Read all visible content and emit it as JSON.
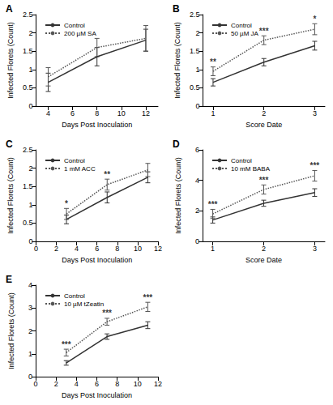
{
  "chart_data": [
    {
      "type": "line",
      "title": "A",
      "x_label": "Days Post Inoculation",
      "y_label": "Infected Florets (Count)",
      "x": [
        4,
        8,
        12
      ],
      "xlim": [
        3,
        13
      ],
      "xticks": [
        4,
        6,
        8,
        10,
        12
      ],
      "ylim": [
        0,
        2.5
      ],
      "yticks": [
        0,
        0.5,
        1,
        1.5,
        2,
        2.5
      ],
      "grid": false,
      "legend": "upper left",
      "series": [
        {
          "name": "Control",
          "color": "#333333",
          "line_style": "solid",
          "values": [
            0.65,
            1.35,
            1.8
          ],
          "errors": [
            0.25,
            0.25,
            0.3
          ]
        },
        {
          "name": "200 µM SA",
          "color": "#555555",
          "line_style": "dotted",
          "values": [
            0.8,
            1.6,
            1.85
          ],
          "errors": [
            0.25,
            0.25,
            0.35
          ]
        }
      ],
      "annotations": []
    },
    {
      "type": "line",
      "title": "B",
      "x_label": "Score Date",
      "y_label": "Infected Florets (Count)",
      "x": [
        1,
        2,
        3
      ],
      "xlim": [
        0.8,
        3.2
      ],
      "xticks": [
        1,
        2,
        3
      ],
      "ylim": [
        0,
        2.5
      ],
      "yticks": [
        0,
        0.5,
        1,
        1.5,
        2,
        2.5
      ],
      "grid": false,
      "legend": "upper left",
      "series": [
        {
          "name": "Control",
          "color": "#333333",
          "line_style": "solid",
          "values": [
            0.65,
            1.2,
            1.65
          ],
          "errors": [
            0.1,
            0.1,
            0.12
          ]
        },
        {
          "name": "50 µM JA",
          "color": "#555555",
          "line_style": "dotted",
          "values": [
            0.95,
            1.8,
            2.1
          ],
          "errors": [
            0.12,
            0.12,
            0.15
          ]
        }
      ],
      "annotations": [
        {
          "x": 1,
          "text": "**"
        },
        {
          "x": 2,
          "text": "***"
        },
        {
          "x": 3,
          "text": "*"
        }
      ]
    },
    {
      "type": "line",
      "title": "C",
      "x_label": "Days Post Inoculation",
      "y_label": "Infected Florets (Count)",
      "x": [
        3,
        7,
        11
      ],
      "xlim": [
        0,
        12
      ],
      "xticks": [
        0,
        2,
        4,
        6,
        8,
        10,
        12
      ],
      "ylim": [
        0,
        2.5
      ],
      "yticks": [
        0,
        0.5,
        1,
        1.5,
        2,
        2.5
      ],
      "grid": false,
      "legend": "upper left",
      "series": [
        {
          "name": "Control",
          "color": "#333333",
          "line_style": "solid",
          "values": [
            0.6,
            1.2,
            1.75
          ],
          "errors": [
            0.12,
            0.15,
            0.15
          ]
        },
        {
          "name": "1 mM ACC",
          "color": "#555555",
          "line_style": "dotted",
          "values": [
            0.75,
            1.55,
            1.95
          ],
          "errors": [
            0.15,
            0.15,
            0.18
          ]
        }
      ],
      "annotations": [
        {
          "x": 3,
          "text": "*"
        },
        {
          "x": 7,
          "text": "**"
        }
      ]
    },
    {
      "type": "line",
      "title": "D",
      "x_label": "Score Date",
      "y_label": "Infected Florets (Count)",
      "x": [
        1,
        2,
        3
      ],
      "xlim": [
        0.8,
        3.2
      ],
      "xticks": [
        1,
        2,
        3
      ],
      "ylim": [
        0,
        6
      ],
      "yticks": [
        0,
        2,
        4,
        6
      ],
      "grid": false,
      "legend": "upper left",
      "series": [
        {
          "name": "Control",
          "color": "#333333",
          "line_style": "solid",
          "values": [
            1.4,
            2.5,
            3.2
          ],
          "errors": [
            0.2,
            0.2,
            0.25
          ]
        },
        {
          "name": "10 mM BABA",
          "color": "#555555",
          "line_style": "dotted",
          "values": [
            1.8,
            3.4,
            4.3
          ],
          "errors": [
            0.3,
            0.3,
            0.35
          ]
        }
      ],
      "annotations": [
        {
          "x": 1,
          "text": "***"
        },
        {
          "x": 2,
          "text": "***"
        },
        {
          "x": 3,
          "text": "***"
        }
      ]
    },
    {
      "type": "line",
      "title": "E",
      "x_label": "Days Post Inoculation",
      "y_label": "Infected Florets (Count)",
      "x": [
        3,
        7,
        11
      ],
      "xlim": [
        0,
        12
      ],
      "xticks": [
        0,
        2,
        4,
        6,
        8,
        10,
        12
      ],
      "ylim": [
        0,
        4
      ],
      "yticks": [
        0,
        1,
        2,
        3,
        4
      ],
      "grid": false,
      "legend": "upper left",
      "series": [
        {
          "name": "Control",
          "color": "#333333",
          "line_style": "solid",
          "values": [
            0.6,
            1.75,
            2.25
          ],
          "errors": [
            0.1,
            0.12,
            0.15
          ]
        },
        {
          "name": "10 µM tZeatin",
          "color": "#555555",
          "line_style": "dotted",
          "values": [
            1.05,
            2.4,
            3.05
          ],
          "errors": [
            0.15,
            0.15,
            0.2
          ]
        }
      ],
      "annotations": [
        {
          "x": 3,
          "text": "***"
        },
        {
          "x": 7,
          "text": "***"
        },
        {
          "x": 11,
          "text": "***"
        }
      ]
    }
  ]
}
